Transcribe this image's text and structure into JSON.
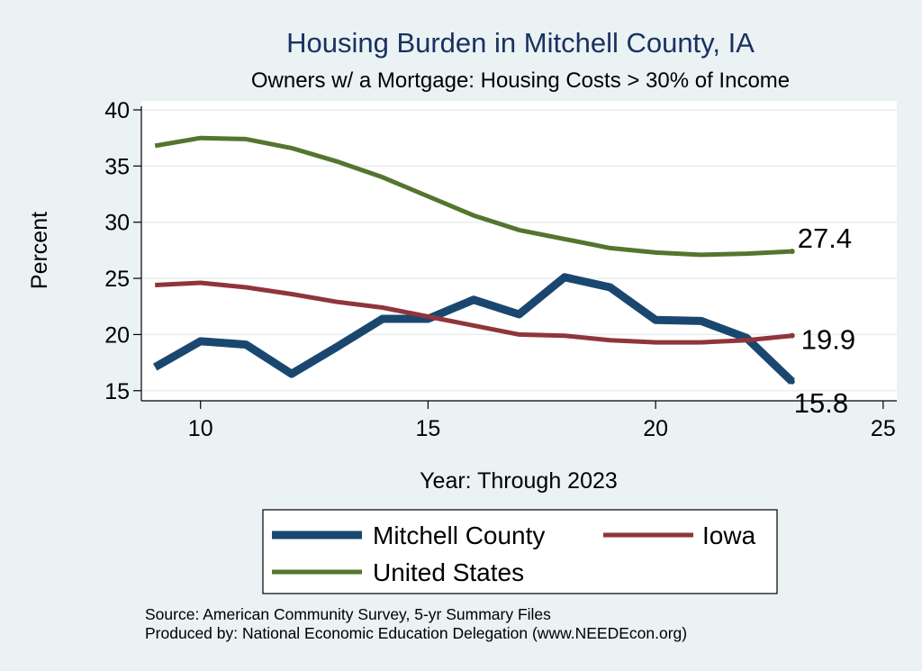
{
  "title": "Housing Burden in Mitchell County, IA",
  "subtitle": "Owners w/ a Mortgage: Housing Costs > 30% of Income",
  "source_lines": [
    "Source: American Community Survey, 5-yr Summary Files",
    "Produced by: National Economic Education Delegation (www.NEEDEcon.org)"
  ],
  "chart_data": {
    "type": "line",
    "title": "Housing Burden in Mitchell County, IA",
    "subtitle": "Owners w/ a Mortgage: Housing Costs > 30% of Income",
    "xlabel": "Year: Through 2023",
    "ylabel": "Percent",
    "xlim": [
      8.7,
      25.3
    ],
    "ylim": [
      14.1,
      40.8
    ],
    "xticks": [
      10,
      15,
      20,
      25
    ],
    "yticks": [
      15,
      20,
      25,
      30,
      35,
      40
    ],
    "grid": true,
    "legend_position": "bottom",
    "x": [
      9,
      10,
      11,
      12,
      13,
      14,
      15,
      16,
      17,
      18,
      19,
      20,
      21,
      22,
      23
    ],
    "series": [
      {
        "name": "Mitchell County",
        "color": "#1a476f",
        "values": [
          17.1,
          19.4,
          19.1,
          16.5,
          18.9,
          21.4,
          21.4,
          23.1,
          21.8,
          25.1,
          24.2,
          21.3,
          21.2,
          19.7,
          15.8
        ],
        "end_label": "15.8"
      },
      {
        "name": "Iowa",
        "color": "#90353b",
        "values": [
          24.4,
          24.6,
          24.2,
          23.6,
          22.9,
          22.4,
          21.6,
          20.8,
          20.0,
          19.9,
          19.5,
          19.3,
          19.3,
          19.5,
          19.9
        ],
        "end_label": "19.9"
      },
      {
        "name": "United States",
        "color": "#55752f",
        "values": [
          36.8,
          37.5,
          37.4,
          36.6,
          35.4,
          34.0,
          32.3,
          30.6,
          29.3,
          28.5,
          27.7,
          27.3,
          27.1,
          27.2,
          27.4
        ],
        "end_label": "27.4"
      }
    ]
  }
}
